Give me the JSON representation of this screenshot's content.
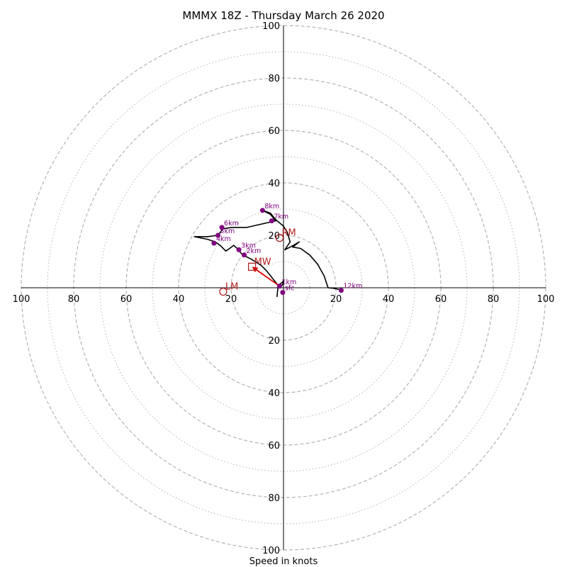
{
  "chart_data": {
    "type": "hodograph",
    "title": "MMMX 18Z - Thursday March 26 2020",
    "xlabel": "Speed in knots",
    "units": "knots",
    "rlim": [
      0,
      100
    ],
    "major_rings": [
      20,
      40,
      60,
      80,
      100
    ],
    "minor_rings": [
      10,
      30,
      50,
      70,
      90
    ],
    "ring_tick_labels": [
      "20",
      "40",
      "60",
      "80",
      "100"
    ],
    "colors": {
      "profile": "#000000",
      "height_marker": "#800080",
      "motion": "#b22222",
      "shear_vector": "#dd0000",
      "grid": "#b4b4b4"
    },
    "profile": [
      {
        "u": -2.5,
        "v": -3.5
      },
      {
        "u": -2.3,
        "v": -1.5
      },
      {
        "u": -2.0,
        "v": 1.0
      },
      {
        "u": -0.5,
        "v": 2.0
      },
      {
        "u": 0.2,
        "v": 3.0
      },
      {
        "u": -0.4,
        "v": 1.0
      },
      {
        "u": -1.5,
        "v": 0.6
      },
      {
        "u": -2.0,
        "v": 0.8
      },
      {
        "u": -4.5,
        "v": 4.0
      },
      {
        "u": -6.5,
        "v": 6.5
      },
      {
        "u": -8.5,
        "v": 8.5
      },
      {
        "u": -10.5,
        "v": 9.8
      },
      {
        "u": -12.5,
        "v": 11.0
      },
      {
        "u": -14.5,
        "v": 12.0
      },
      {
        "u": -16.0,
        "v": 13.0
      },
      {
        "u": -17.5,
        "v": 14.8
      },
      {
        "u": -19.0,
        "v": 16.2
      },
      {
        "u": -20.5,
        "v": 15.0
      },
      {
        "u": -22.0,
        "v": 14.0
      },
      {
        "u": -24.0,
        "v": 16.0
      },
      {
        "u": -26.0,
        "v": 17.5
      },
      {
        "u": -29.0,
        "v": 18.5
      },
      {
        "u": -34.0,
        "v": 19.5
      },
      {
        "u": -29.0,
        "v": 19.5
      },
      {
        "u": -25.0,
        "v": 20.0
      },
      {
        "u": -23.0,
        "v": 22.5
      },
      {
        "u": -20.0,
        "v": 23.0
      },
      {
        "u": -14.0,
        "v": 23.0
      },
      {
        "u": -3.0,
        "v": 25.5
      },
      {
        "u": -5.0,
        "v": 28.0
      },
      {
        "u": -8.0,
        "v": 29.5
      },
      {
        "u": -5.0,
        "v": 28.5
      },
      {
        "u": -3.0,
        "v": 26.0
      },
      {
        "u": 0.0,
        "v": 23.5
      },
      {
        "u": 1.5,
        "v": 21.0
      },
      {
        "u": 2.5,
        "v": 17.5
      },
      {
        "u": 0.5,
        "v": 14.5
      },
      {
        "u": 3.5,
        "v": 16.0
      },
      {
        "u": 6.0,
        "v": 17.5
      },
      {
        "u": 3.5,
        "v": 15.5
      },
      {
        "u": 6.5,
        "v": 15.0
      },
      {
        "u": 10.0,
        "v": 12.5
      },
      {
        "u": 13.0,
        "v": 9.0
      },
      {
        "u": 15.5,
        "v": 4.5
      },
      {
        "u": 17.0,
        "v": 0.0
      },
      {
        "u": 19.0,
        "v": -0.2
      },
      {
        "u": 20.5,
        "v": -0.5
      },
      {
        "u": 22.0,
        "v": -0.8
      }
    ],
    "height_markers": [
      {
        "label": "sfc",
        "u": -0.3,
        "v": -1.8
      },
      {
        "label": "1km",
        "u": -1.5,
        "v": 0.6
      },
      {
        "label": "2km",
        "u": -15.0,
        "v": 12.5
      },
      {
        "label": "3km",
        "u": -17.0,
        "v": 14.5
      },
      {
        "label": "4km",
        "u": -26.5,
        "v": 17.0
      },
      {
        "label": "5km",
        "u": -25.0,
        "v": 20.0
      },
      {
        "label": "6km",
        "u": -23.5,
        "v": 23.0
      },
      {
        "label": "7km",
        "u": -4.5,
        "v": 25.5
      },
      {
        "label": "8km",
        "u": -8.0,
        "v": 29.5
      },
      {
        "label": "12km",
        "u": 22.0,
        "v": -1.0
      }
    ],
    "storm_motions": [
      {
        "label": "RM",
        "u": -1.5,
        "v": 19.0,
        "marker": "circle"
      },
      {
        "label": "LM",
        "u": -23.0,
        "v": -1.5,
        "marker": "circle"
      },
      {
        "label": "MW",
        "u": -12.0,
        "v": 8.0,
        "marker": "square"
      }
    ],
    "shear_vector": {
      "from": {
        "u": -2.0,
        "v": 1.0
      },
      "to": {
        "u": -12.0,
        "v": 8.0
      }
    }
  }
}
